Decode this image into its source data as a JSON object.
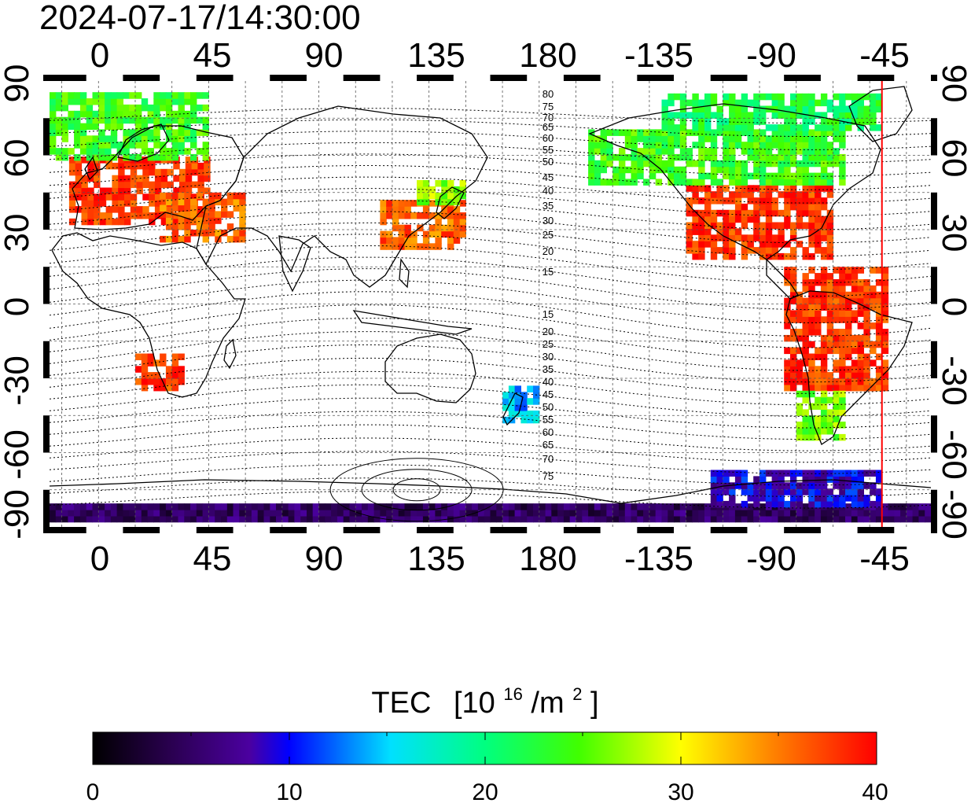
{
  "timestamp": "2024-07-17/14:30:00",
  "top_axis_labels": [
    "0",
    "45",
    "90",
    "135",
    "180",
    "-135",
    "-90",
    "-45"
  ],
  "bottom_axis_labels": [
    "0",
    "45",
    "90",
    "135",
    "180",
    "-135",
    "-90",
    "-45"
  ],
  "left_axis_labels": [
    "90",
    "60",
    "30",
    "0",
    "-30",
    "-60",
    "-90"
  ],
  "right_axis_labels": [
    "90",
    "60",
    "30",
    "0",
    "-30",
    "-60",
    "-90"
  ],
  "mlat_labels_north": [
    "80",
    "75",
    "70",
    "65",
    "60",
    "55",
    "50",
    "45",
    "40",
    "35",
    "30",
    "25",
    "20",
    "15"
  ],
  "mlat_labels_south": [
    "15",
    "20",
    "25",
    "30",
    "35",
    "40",
    "45",
    "50",
    "55",
    "60",
    "65",
    "70",
    "75"
  ],
  "colorbar": {
    "title": "TEC",
    "unit_prefix": "[10",
    "unit_sup": "16",
    "unit_mid": "/m",
    "unit_sup2": "2",
    "unit_suffix": "]",
    "ticks": [
      "0",
      "10",
      "20",
      "30",
      "40"
    ],
    "min": 0,
    "max": 40
  },
  "map_extent": {
    "lon_range": [
      -20,
      340
    ],
    "lat_range": [
      -90,
      90
    ],
    "grid_step_deg": 15,
    "terminator_lon": -40,
    "terminator_color": "#ff0000"
  },
  "tec_regions": [
    {
      "name": "europe",
      "lon": [
        -12,
        45
      ],
      "lat": [
        32,
        58
      ],
      "tec": 38
    },
    {
      "name": "north-africa-mideast",
      "lon": [
        25,
        60
      ],
      "lat": [
        25,
        45
      ],
      "tec": 36
    },
    {
      "name": "arctic-europe",
      "lon": [
        -20,
        45
      ],
      "lat": [
        58,
        85
      ],
      "tec": 24
    },
    {
      "name": "south-africa",
      "lon": [
        15,
        35
      ],
      "lat": [
        -35,
        -22
      ],
      "tec": 38
    },
    {
      "name": "east-asia",
      "lon": [
        115,
        150
      ],
      "lat": [
        22,
        42
      ],
      "tec": 36
    },
    {
      "name": "japan-north",
      "lon": [
        130,
        150
      ],
      "lat": [
        40,
        50
      ],
      "tec": 27
    },
    {
      "name": "new-zealand",
      "lon": [
        165,
        180
      ],
      "lat": [
        -48,
        -35
      ],
      "tec": 14
    },
    {
      "name": "north-america",
      "lon": [
        -120,
        -60
      ],
      "lat": [
        18,
        48
      ],
      "tec": 38
    },
    {
      "name": "canada",
      "lon": [
        -160,
        -55
      ],
      "lat": [
        48,
        70
      ],
      "tec": 24
    },
    {
      "name": "arctic-america",
      "lon": [
        -130,
        -40
      ],
      "lat": [
        70,
        85
      ],
      "tec": 22
    },
    {
      "name": "south-america",
      "lon": [
        -80,
        -38
      ],
      "lat": [
        -35,
        15
      ],
      "tec": 38
    },
    {
      "name": "patagonia",
      "lon": [
        -75,
        -55
      ],
      "lat": [
        -55,
        -35
      ],
      "tec": 26
    },
    {
      "name": "antarctic-belt",
      "lon": [
        -20,
        340
      ],
      "lat": [
        -88,
        -82
      ],
      "tec": 5
    },
    {
      "name": "antarctic-west",
      "lon": [
        -110,
        -40
      ],
      "lat": [
        -82,
        -68
      ],
      "tec": 9
    }
  ]
}
